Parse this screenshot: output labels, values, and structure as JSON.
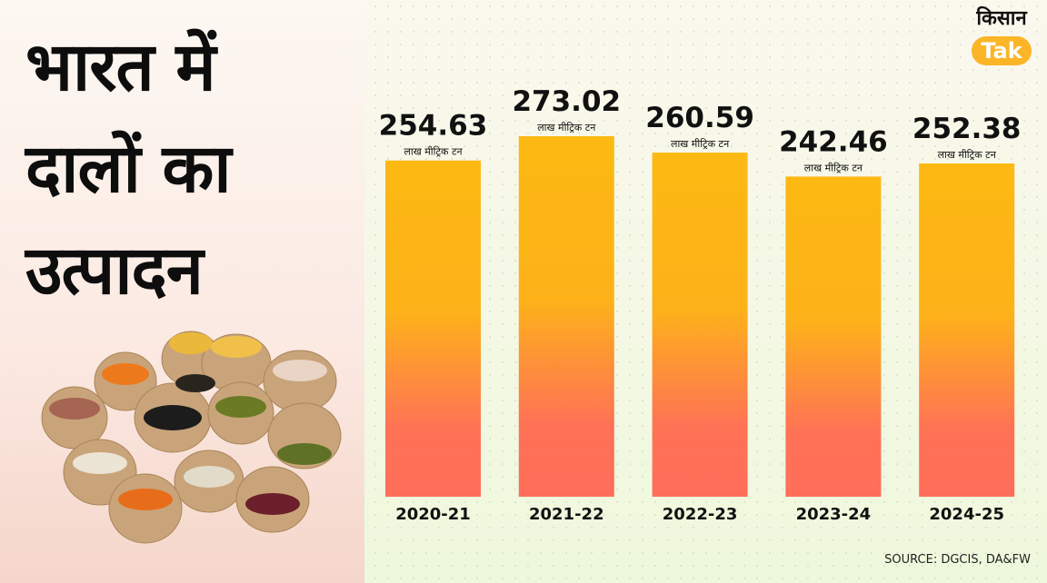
{
  "title_lines": [
    "भारत में",
    "दालों का",
    "उत्पादन"
  ],
  "logo": {
    "hindi": "किसान",
    "brand": "Tak"
  },
  "source": "SOURCE: DGCIS, DA&FW",
  "colors": {
    "bar_top": "#FDB913",
    "bar_bottom": "#FF6E5A",
    "logo_accent": "#FBB526"
  },
  "chart_data": {
    "type": "bar",
    "categories": [
      "2020-21",
      "2021-22",
      "2022-23",
      "2023-24",
      "2024-25"
    ],
    "values": [
      254.63,
      273.02,
      260.59,
      242.46,
      252.38
    ],
    "unit_label": "लाख मीट्रिक टन",
    "value_labels": [
      "254.63",
      "273.02",
      "260.59",
      "242.46",
      "252.38"
    ],
    "ylim": [
      0,
      273.02
    ],
    "grid": false,
    "legend": "none"
  }
}
